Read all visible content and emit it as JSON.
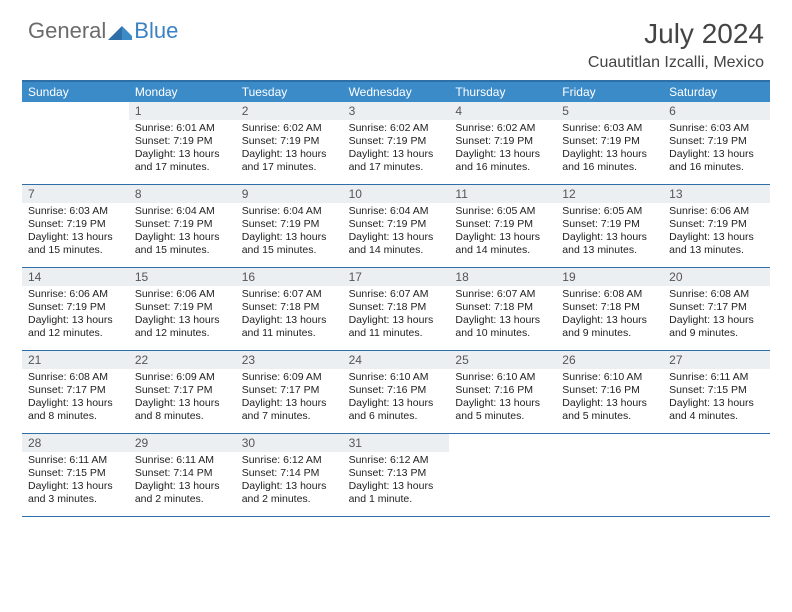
{
  "brand": {
    "part1": "General",
    "part2": "Blue"
  },
  "title": "July 2024",
  "location": "Cuautitlan Izcalli, Mexico",
  "colors": {
    "header_bg": "#3b8bc9",
    "border": "#2f6fa8",
    "daynum_bg": "#eceff1",
    "brand_gray": "#6b6b6b",
    "brand_blue": "#3b82c4"
  },
  "day_names": [
    "Sunday",
    "Monday",
    "Tuesday",
    "Wednesday",
    "Thursday",
    "Friday",
    "Saturday"
  ],
  "weeks": [
    [
      {
        "n": "",
        "sr": "",
        "ss": "",
        "dl": ""
      },
      {
        "n": "1",
        "sr": "Sunrise: 6:01 AM",
        "ss": "Sunset: 7:19 PM",
        "dl": "Daylight: 13 hours and 17 minutes."
      },
      {
        "n": "2",
        "sr": "Sunrise: 6:02 AM",
        "ss": "Sunset: 7:19 PM",
        "dl": "Daylight: 13 hours and 17 minutes."
      },
      {
        "n": "3",
        "sr": "Sunrise: 6:02 AM",
        "ss": "Sunset: 7:19 PM",
        "dl": "Daylight: 13 hours and 17 minutes."
      },
      {
        "n": "4",
        "sr": "Sunrise: 6:02 AM",
        "ss": "Sunset: 7:19 PM",
        "dl": "Daylight: 13 hours and 16 minutes."
      },
      {
        "n": "5",
        "sr": "Sunrise: 6:03 AM",
        "ss": "Sunset: 7:19 PM",
        "dl": "Daylight: 13 hours and 16 minutes."
      },
      {
        "n": "6",
        "sr": "Sunrise: 6:03 AM",
        "ss": "Sunset: 7:19 PM",
        "dl": "Daylight: 13 hours and 16 minutes."
      }
    ],
    [
      {
        "n": "7",
        "sr": "Sunrise: 6:03 AM",
        "ss": "Sunset: 7:19 PM",
        "dl": "Daylight: 13 hours and 15 minutes."
      },
      {
        "n": "8",
        "sr": "Sunrise: 6:04 AM",
        "ss": "Sunset: 7:19 PM",
        "dl": "Daylight: 13 hours and 15 minutes."
      },
      {
        "n": "9",
        "sr": "Sunrise: 6:04 AM",
        "ss": "Sunset: 7:19 PM",
        "dl": "Daylight: 13 hours and 15 minutes."
      },
      {
        "n": "10",
        "sr": "Sunrise: 6:04 AM",
        "ss": "Sunset: 7:19 PM",
        "dl": "Daylight: 13 hours and 14 minutes."
      },
      {
        "n": "11",
        "sr": "Sunrise: 6:05 AM",
        "ss": "Sunset: 7:19 PM",
        "dl": "Daylight: 13 hours and 14 minutes."
      },
      {
        "n": "12",
        "sr": "Sunrise: 6:05 AM",
        "ss": "Sunset: 7:19 PM",
        "dl": "Daylight: 13 hours and 13 minutes."
      },
      {
        "n": "13",
        "sr": "Sunrise: 6:06 AM",
        "ss": "Sunset: 7:19 PM",
        "dl": "Daylight: 13 hours and 13 minutes."
      }
    ],
    [
      {
        "n": "14",
        "sr": "Sunrise: 6:06 AM",
        "ss": "Sunset: 7:19 PM",
        "dl": "Daylight: 13 hours and 12 minutes."
      },
      {
        "n": "15",
        "sr": "Sunrise: 6:06 AM",
        "ss": "Sunset: 7:19 PM",
        "dl": "Daylight: 13 hours and 12 minutes."
      },
      {
        "n": "16",
        "sr": "Sunrise: 6:07 AM",
        "ss": "Sunset: 7:18 PM",
        "dl": "Daylight: 13 hours and 11 minutes."
      },
      {
        "n": "17",
        "sr": "Sunrise: 6:07 AM",
        "ss": "Sunset: 7:18 PM",
        "dl": "Daylight: 13 hours and 11 minutes."
      },
      {
        "n": "18",
        "sr": "Sunrise: 6:07 AM",
        "ss": "Sunset: 7:18 PM",
        "dl": "Daylight: 13 hours and 10 minutes."
      },
      {
        "n": "19",
        "sr": "Sunrise: 6:08 AM",
        "ss": "Sunset: 7:18 PM",
        "dl": "Daylight: 13 hours and 9 minutes."
      },
      {
        "n": "20",
        "sr": "Sunrise: 6:08 AM",
        "ss": "Sunset: 7:17 PM",
        "dl": "Daylight: 13 hours and 9 minutes."
      }
    ],
    [
      {
        "n": "21",
        "sr": "Sunrise: 6:08 AM",
        "ss": "Sunset: 7:17 PM",
        "dl": "Daylight: 13 hours and 8 minutes."
      },
      {
        "n": "22",
        "sr": "Sunrise: 6:09 AM",
        "ss": "Sunset: 7:17 PM",
        "dl": "Daylight: 13 hours and 8 minutes."
      },
      {
        "n": "23",
        "sr": "Sunrise: 6:09 AM",
        "ss": "Sunset: 7:17 PM",
        "dl": "Daylight: 13 hours and 7 minutes."
      },
      {
        "n": "24",
        "sr": "Sunrise: 6:10 AM",
        "ss": "Sunset: 7:16 PM",
        "dl": "Daylight: 13 hours and 6 minutes."
      },
      {
        "n": "25",
        "sr": "Sunrise: 6:10 AM",
        "ss": "Sunset: 7:16 PM",
        "dl": "Daylight: 13 hours and 5 minutes."
      },
      {
        "n": "26",
        "sr": "Sunrise: 6:10 AM",
        "ss": "Sunset: 7:16 PM",
        "dl": "Daylight: 13 hours and 5 minutes."
      },
      {
        "n": "27",
        "sr": "Sunrise: 6:11 AM",
        "ss": "Sunset: 7:15 PM",
        "dl": "Daylight: 13 hours and 4 minutes."
      }
    ],
    [
      {
        "n": "28",
        "sr": "Sunrise: 6:11 AM",
        "ss": "Sunset: 7:15 PM",
        "dl": "Daylight: 13 hours and 3 minutes."
      },
      {
        "n": "29",
        "sr": "Sunrise: 6:11 AM",
        "ss": "Sunset: 7:14 PM",
        "dl": "Daylight: 13 hours and 2 minutes."
      },
      {
        "n": "30",
        "sr": "Sunrise: 6:12 AM",
        "ss": "Sunset: 7:14 PM",
        "dl": "Daylight: 13 hours and 2 minutes."
      },
      {
        "n": "31",
        "sr": "Sunrise: 6:12 AM",
        "ss": "Sunset: 7:13 PM",
        "dl": "Daylight: 13 hours and 1 minute."
      },
      {
        "n": "",
        "sr": "",
        "ss": "",
        "dl": ""
      },
      {
        "n": "",
        "sr": "",
        "ss": "",
        "dl": ""
      },
      {
        "n": "",
        "sr": "",
        "ss": "",
        "dl": ""
      }
    ]
  ]
}
